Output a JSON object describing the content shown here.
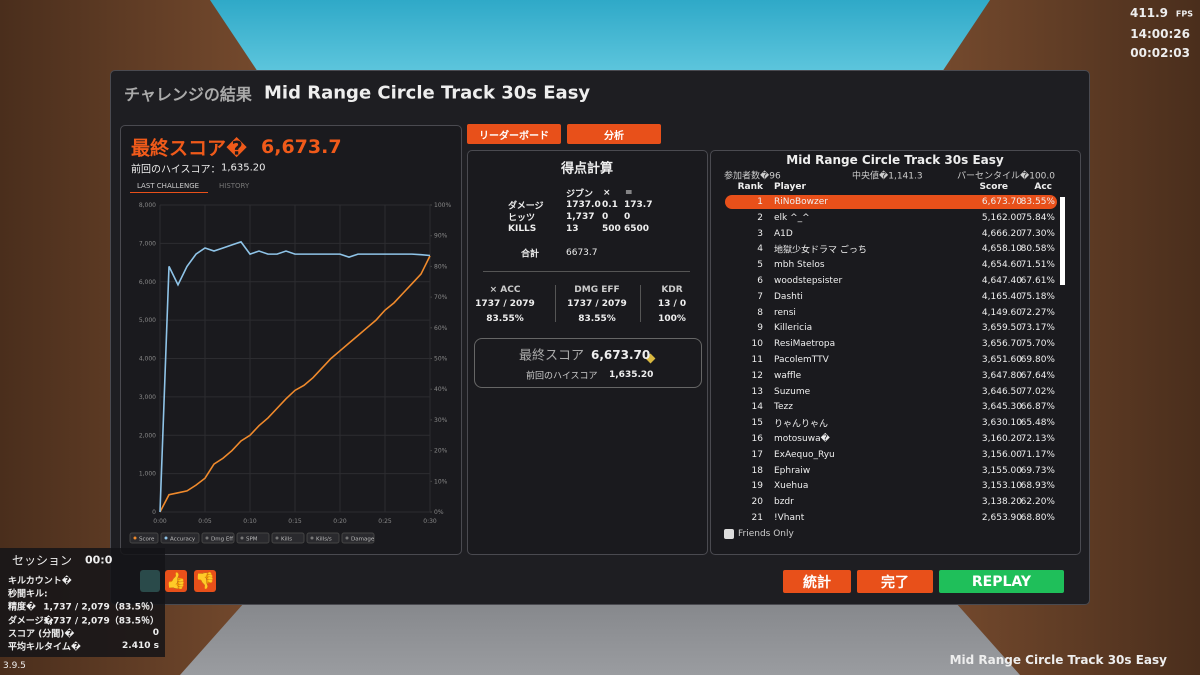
{
  "hud": {
    "fps": "411.9",
    "fps_unit": "FPS",
    "clock": "14:00:26",
    "elapsed": "00:02:03"
  },
  "dialog": {
    "title_prefix": "チャレンジの結果",
    "title": "Mid Range Circle Track 30s Easy"
  },
  "summary": {
    "final_label": "最終スコア�",
    "final_value": "6,673.7",
    "prev_label": "前回のハイスコア：",
    "prev_value": "1,635.20",
    "tabs": [
      "LAST CHALLENGE",
      "HISTORY"
    ]
  },
  "chart_data": {
    "type": "line",
    "x": [
      0,
      1,
      2,
      3,
      4,
      5,
      6,
      7,
      8,
      9,
      10,
      11,
      12,
      13,
      14,
      15,
      16,
      17,
      18,
      19,
      20,
      21,
      22,
      23,
      24,
      25,
      26,
      27,
      28,
      29,
      30
    ],
    "xlim": [
      0,
      30
    ],
    "xticks": [
      {
        "value": 0,
        "label": "0:00"
      },
      {
        "value": 5,
        "label": "0:05"
      },
      {
        "value": 10,
        "label": "0:10"
      },
      {
        "value": 15,
        "label": "0:15"
      },
      {
        "value": 20,
        "label": "0:20"
      },
      {
        "value": 25,
        "label": "0:25"
      },
      {
        "value": 30,
        "label": "0:30"
      }
    ],
    "ylim": [
      0,
      8000
    ],
    "yticks": [
      0,
      {
        "value": 1000,
        "label": "1,000"
      },
      {
        "value": 2000,
        "label": "2,000"
      },
      {
        "value": 3000,
        "label": "3,000"
      },
      {
        "value": 4000,
        "label": "4,000"
      },
      {
        "value": 5000,
        "label": "5,000"
      },
      {
        "value": 6000,
        "label": "6,000"
      },
      {
        "value": 7000,
        "label": "7,000"
      },
      {
        "value": 8000,
        "label": "8,000"
      }
    ],
    "y2lim": [
      0,
      100
    ],
    "y2ticks": [
      {
        "value": 0,
        "label": "0%"
      },
      {
        "value": 10,
        "label": "10%"
      },
      {
        "value": 20,
        "label": "20%"
      },
      {
        "value": 30,
        "label": "30%"
      },
      {
        "value": 40,
        "label": "40%"
      },
      {
        "value": 50,
        "label": "50%"
      },
      {
        "value": 60,
        "label": "60%"
      },
      {
        "value": 70,
        "label": "70%"
      },
      {
        "value": 80,
        "label": "80%"
      },
      {
        "value": 90,
        "label": "90%"
      },
      {
        "value": 100,
        "label": "100%"
      }
    ],
    "grid": true,
    "series": [
      {
        "name": "Score",
        "color": "#f08a2c",
        "values": [
          0,
          450,
          500,
          550,
          700,
          880,
          1250,
          1400,
          1600,
          1850,
          2000,
          2250,
          2450,
          2700,
          2950,
          3170,
          3300,
          3500,
          3750,
          4000,
          4200,
          4400,
          4600,
          4800,
          5000,
          5260,
          5450,
          5700,
          5950,
          6200,
          6673.7
        ]
      },
      {
        "name": "Accuracy",
        "color": "#8fc4e8",
        "axis": "y2",
        "values": [
          0,
          80,
          74,
          80,
          84,
          86,
          85,
          86,
          87,
          88,
          84,
          85,
          84,
          84,
          85,
          84,
          84,
          84,
          84,
          84,
          84,
          83,
          84,
          84,
          84,
          84,
          84,
          84,
          84,
          83.8,
          83.55
        ]
      }
    ],
    "inactive_legend": [
      "Dmg Eff",
      "SPM",
      "Kills",
      "Kills/s",
      "Damage"
    ]
  },
  "tabs": [
    "リーダーボード",
    "分析"
  ],
  "calc": {
    "title": "得点計算",
    "header": [
      "ジブン",
      "×",
      "="
    ],
    "rows": [
      [
        "ダメージ",
        "1737.0",
        "0.1",
        "173.7"
      ],
      [
        "ヒッツ",
        "1,737",
        "0",
        "0"
      ],
      [
        "KILLS",
        "13",
        "500",
        "6500"
      ]
    ],
    "total": [
      "合計",
      "6673.7"
    ],
    "stats": [
      [
        "× ACC",
        "1737 / 2079",
        "83.55%"
      ],
      [
        "DMG EFF",
        "1737 / 2079",
        "83.55%"
      ],
      [
        "KDR",
        "13 / 0",
        "100%"
      ]
    ],
    "final_label": "最終スコア",
    "final_value": "6,673.70",
    "prev_label": "前回のハイスコア",
    "prev_value": "1,635.20"
  },
  "leaderboard": {
    "title": "Mid Range Circle Track 30s Easy",
    "participants": "参加者数�96",
    "median": "中央値�1,141.3",
    "percentile": "パーセンタイル�100.0",
    "header": [
      "Rank",
      "Player",
      "Score",
      "Acc"
    ],
    "rows": [
      [
        1,
        "RiNoBowzer",
        "6,673.70",
        "83.55%"
      ],
      [
        2,
        "elk ^_^",
        "5,162.00",
        "75.84%"
      ],
      [
        3,
        "A1D",
        "4,666.20",
        "77.30%"
      ],
      [
        4,
        "地獄少女ドラマ ごっち",
        "4,658.10",
        "80.58%"
      ],
      [
        5,
        "mbh Stelos",
        "4,654.60",
        "71.51%"
      ],
      [
        6,
        "woodstepsister",
        "4,647.40",
        "67.61%"
      ],
      [
        7,
        "Dashti",
        "4,165.40",
        "75.18%"
      ],
      [
        8,
        "rensi",
        "4,149.60",
        "72.27%"
      ],
      [
        9,
        "Killericia",
        "3,659.50",
        "73.17%"
      ],
      [
        10,
        "ResiMaetropa",
        "3,656.70",
        "75.70%"
      ],
      [
        11,
        "PacolemTTV",
        "3,651.60",
        "69.80%"
      ],
      [
        12,
        "waffle",
        "3,647.80",
        "67.64%"
      ],
      [
        13,
        "Suzume",
        "3,646.50",
        "77.02%"
      ],
      [
        14,
        "Tezz",
        "3,645.30",
        "66.87%"
      ],
      [
        15,
        "りゃんりゃん",
        "3,630.10",
        "65.48%"
      ],
      [
        16,
        "motosuwa�",
        "3,160.20",
        "72.13%"
      ],
      [
        17,
        "ExAequo_Ryu",
        "3,156.00",
        "71.17%"
      ],
      [
        18,
        "Ephraiw",
        "3,155.00",
        "69.73%"
      ],
      [
        19,
        "Xuehua",
        "3,153.10",
        "68.93%"
      ],
      [
        20,
        "bzdr",
        "3,138.20",
        "62.20%"
      ],
      [
        21,
        "!Vhant",
        "2,653.90",
        "68.80%"
      ]
    ],
    "friends_only": "Friends Only"
  },
  "buttons": [
    "統計",
    "完了",
    "REPLAY"
  ],
  "session": {
    "title": "セッション",
    "time": "00:0",
    "rows": [
      [
        "キルカウント�",
        ""
      ],
      [
        "秒間キル:",
        ""
      ],
      [
        "精度�",
        "1,737 / 2,079（83.5％）"
      ],
      [
        "ダメージ�",
        "1,737 / 2,079（83.5％）"
      ],
      [
        "スコア (分間)�",
        "0"
      ],
      [
        "平均キルタイム�",
        "2.410 s"
      ]
    ]
  },
  "version": "3.9.5",
  "scenario": "Mid Range Circle Track 30s Easy"
}
